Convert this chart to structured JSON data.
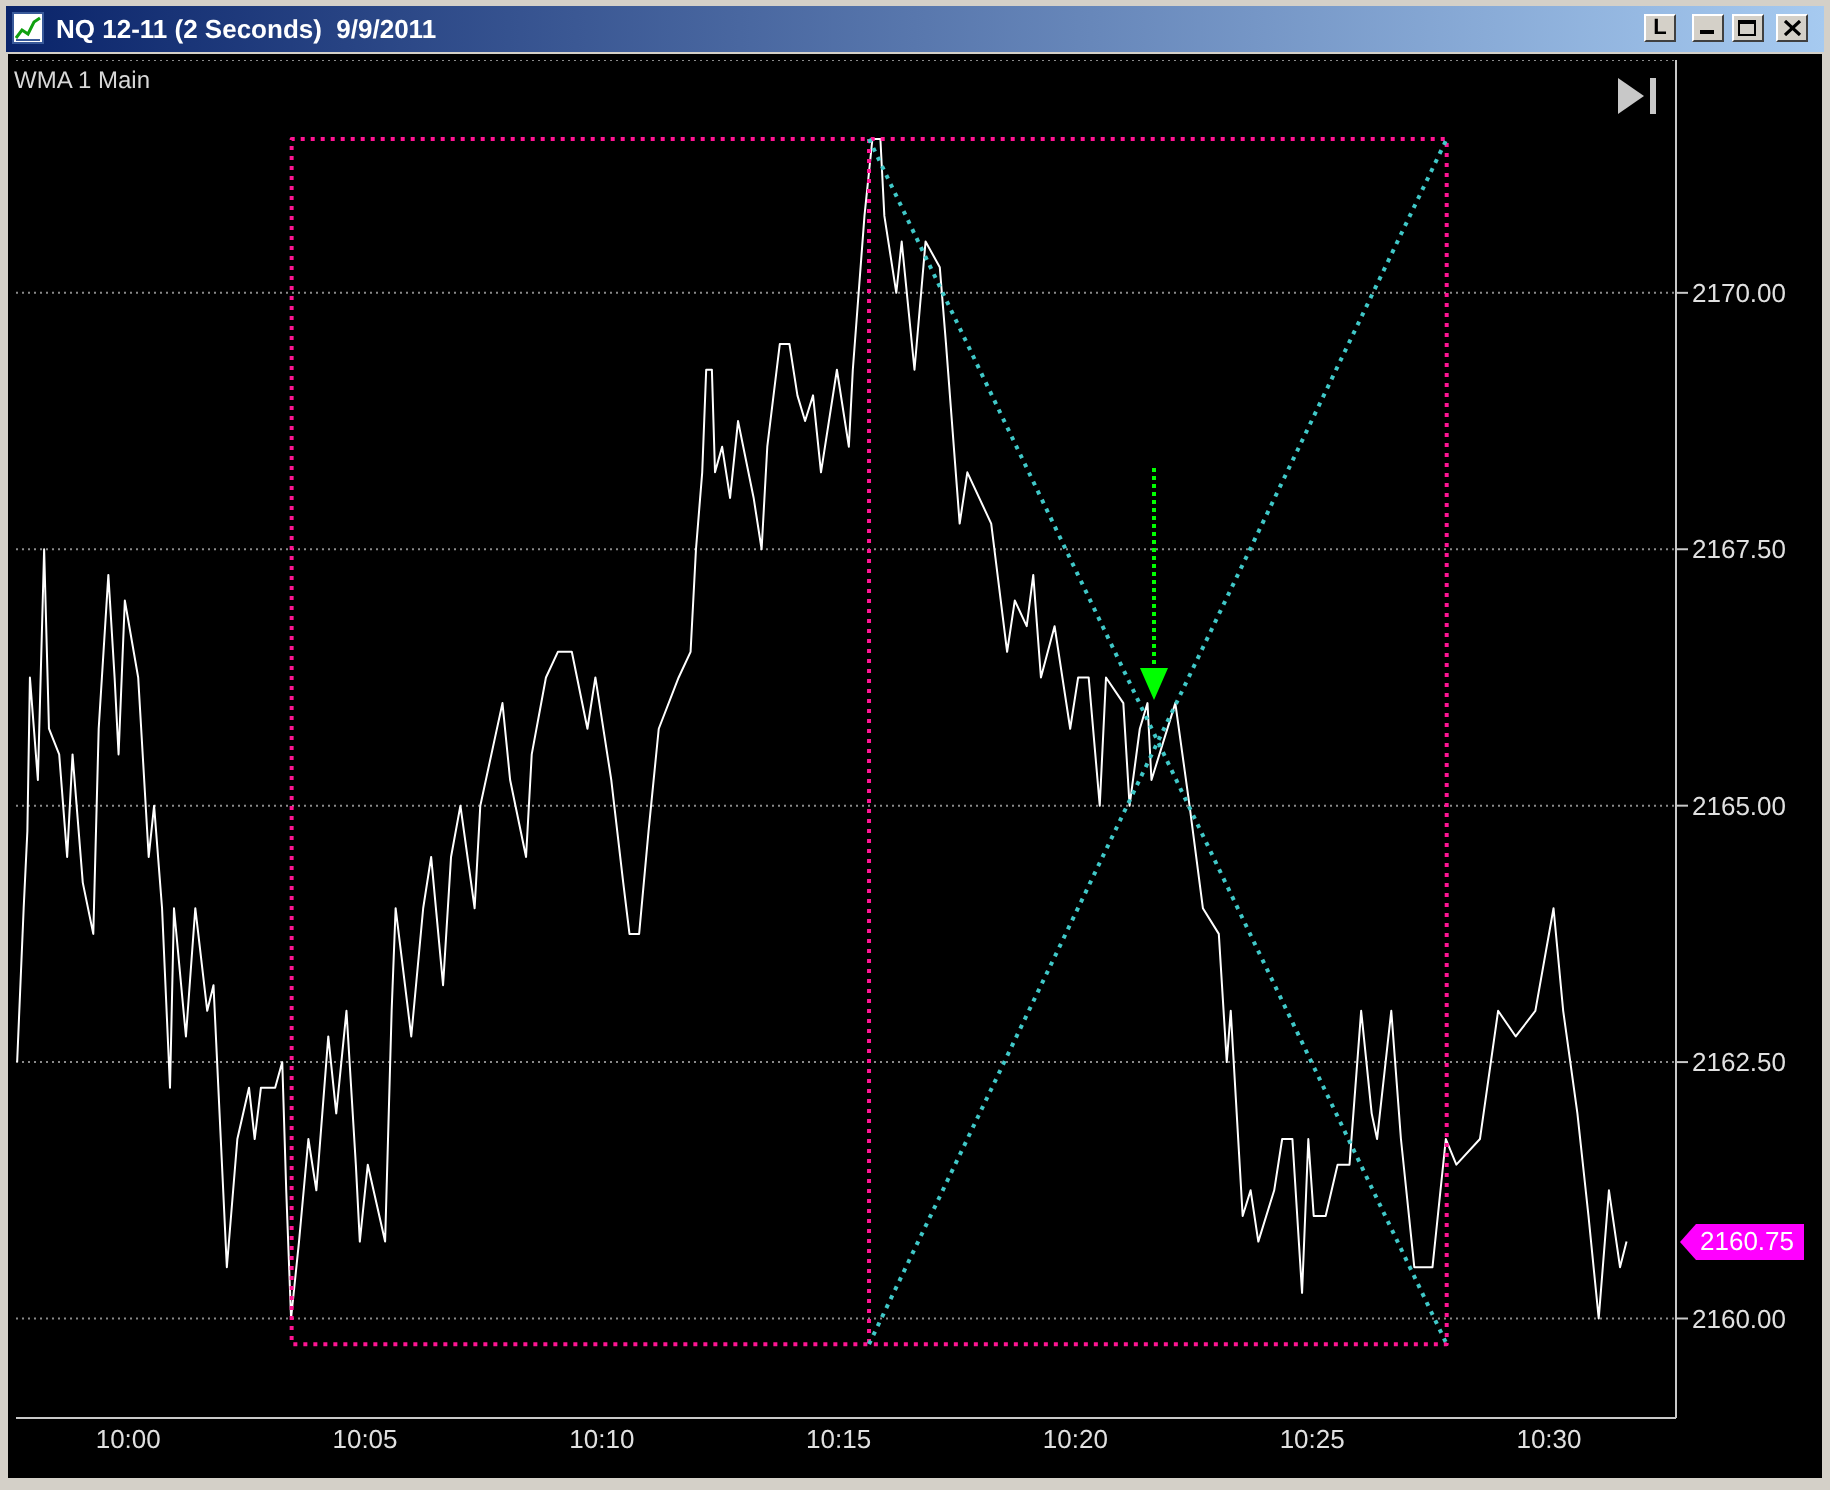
{
  "chart_data": {
    "type": "line",
    "title": "NQ 12-11 (2 Seconds)  9/9/2011",
    "subtitle": "WMA 1 Main",
    "x": [
      9.9609,
      9.9632,
      9.9645,
      9.9654,
      9.9682,
      9.9704,
      9.9721,
      9.9757,
      9.9785,
      9.9804,
      9.984,
      9.9877,
      9.9896,
      9.993,
      9.9952,
      9.9966,
      9.9988,
      10.0035,
      10.0072,
      10.0091,
      10.0119,
      10.0147,
      10.0161,
      10.0203,
      10.0236,
      10.0278,
      10.03,
      10.0347,
      10.0384,
      10.0425,
      10.0445,
      10.0467,
      10.0517,
      10.0542,
      10.0556,
      10.0573,
      10.0601,
      10.0634,
      10.0662,
      10.0704,
      10.0732,
      10.0768,
      10.0801,
      10.0815,
      10.0843,
      10.0904,
      10.0927,
      10.0941,
      10.0996,
      10.1038,
      10.1066,
      10.1108,
      10.1136,
      10.1169,
      10.1219,
      10.1239,
      10.1317,
      10.1344,
      10.14,
      10.142,
      10.147,
      10.1512,
      10.1561,
      10.1616,
      10.1644,
      10.17,
      10.1742,
      10.1764,
      10.1798,
      10.1831,
      10.1867,
      10.1937,
      10.1979,
      10.1998,
      10.202,
      10.2034,
      10.2054,
      10.2065,
      10.209,
      10.2118,
      10.2146,
      10.2201,
      10.2229,
      10.2249,
      10.2293,
      10.2327,
      10.2355,
      10.2382,
      10.241,
      10.2438,
      10.2494,
      10.2536,
      10.255,
      10.2591,
      10.2619,
      10.2647,
      10.2661,
      10.2703,
      10.2722,
      10.2767,
      10.2806,
      10.2856,
      10.2878,
      10.2926,
      10.2953,
      10.3037,
      10.3093,
      10.312,
      10.3162,
      10.3185,
      10.3212,
      10.326,
      10.3315,
      10.3343,
      10.338,
      10.3419,
      10.3441,
      10.3502,
      10.3524,
      10.356,
      10.3587,
      10.3601,
      10.3685,
      10.3735,
      10.3782,
      10.3838,
      10.3866,
      10.388,
      10.3922,
      10.395,
      10.3977,
      10.4033,
      10.4061,
      10.4097,
      10.4131,
      10.4153,
      10.4172,
      10.4214,
      10.4256,
      10.4298,
      10.4339,
      10.4376,
      10.4395,
      10.4445,
      10.4479,
      10.4526,
      10.459,
      10.4637,
      10.4674,
      10.4757,
      10.4821,
      10.4883,
      10.4952,
      10.5016,
      10.505,
      10.51,
      10.5139,
      10.5175,
      10.5211,
      10.525,
      10.5273
    ],
    "series": [
      {
        "color": "#ffffff",
        "values": [
          2162.5,
          2164.0,
          2164.75,
          2166.25,
          2165.25,
          2167.5,
          2165.75,
          2165.5,
          2164.5,
          2165.5,
          2164.25,
          2163.75,
          2165.75,
          2167.25,
          2166.25,
          2165.5,
          2167.0,
          2166.25,
          2164.5,
          2165.0,
          2164.0,
          2162.25,
          2164.0,
          2162.75,
          2164.0,
          2163.0,
          2163.25,
          2160.5,
          2161.75,
          2162.25,
          2161.75,
          2162.25,
          2162.25,
          2162.5,
          2161.25,
          2160.0,
          2160.75,
          2161.75,
          2161.25,
          2162.75,
          2162.0,
          2163.0,
          2161.5,
          2160.75,
          2161.5,
          2160.75,
          2163.0,
          2164.0,
          2162.75,
          2164.0,
          2164.5,
          2163.25,
          2164.5,
          2165.0,
          2164.0,
          2165.0,
          2166.0,
          2165.25,
          2164.5,
          2165.5,
          2166.25,
          2166.5,
          2166.5,
          2165.75,
          2166.25,
          2165.25,
          2164.25,
          2163.75,
          2163.75,
          2164.75,
          2165.75,
          2166.25,
          2166.5,
          2167.5,
          2168.25,
          2169.25,
          2169.25,
          2168.25,
          2168.5,
          2168.0,
          2168.75,
          2168.0,
          2167.5,
          2168.5,
          2169.5,
          2169.5,
          2169.0,
          2168.75,
          2169.0,
          2168.25,
          2169.25,
          2168.5,
          2169.25,
          2170.75,
          2171.5,
          2171.5,
          2170.75,
          2170.0,
          2170.5,
          2169.25,
          2170.5,
          2170.25,
          2169.5,
          2167.75,
          2168.25,
          2167.75,
          2166.5,
          2167.0,
          2166.75,
          2167.25,
          2166.25,
          2166.75,
          2165.75,
          2166.25,
          2166.25,
          2165.0,
          2166.25,
          2166.0,
          2165.0,
          2165.75,
          2166.0,
          2165.25,
          2166.0,
          2165.0,
          2164.0,
          2163.75,
          2162.5,
          2163.0,
          2161.0,
          2161.25,
          2160.75,
          2161.25,
          2161.75,
          2161.75,
          2160.25,
          2161.75,
          2161.0,
          2161.0,
          2161.5,
          2161.5,
          2163.0,
          2162.0,
          2161.75,
          2163.0,
          2161.75,
          2160.5,
          2160.5,
          2161.75,
          2161.5,
          2161.75,
          2163.0,
          2162.75,
          2163.0,
          2164.0,
          2163.0,
          2162.0,
          2161.0,
          2160.0,
          2161.25,
          2160.5,
          2160.75
        ]
      },
      {
        "color": "#ff1493",
        "line_style": "dotted",
        "x": [
          10.2607,
          10.2607,
          10.464,
          10.464,
          10.0575,
          10.0575,
          10.2607
        ],
        "values": [
          2171.5,
          2159.75,
          2159.75,
          2171.5,
          2171.5,
          2159.75,
          2159.75
        ]
      },
      {
        "color": "#40c8c8",
        "line_style": "dotted",
        "x": [
          10.2607,
          10.464
        ],
        "values": [
          2171.5,
          2159.75
        ]
      },
      {
        "color": "#40c8c8",
        "line_style": "dotted",
        "x": [
          10.2607,
          10.464
        ],
        "values": [
          2159.75,
          2171.5
        ]
      }
    ],
    "xlim": [
      9.9605,
      10.5447
    ],
    "xticks": [
      {
        "value": 10,
        "label": "10:00"
      },
      {
        "value": 10.08333,
        "label": "10:05"
      },
      {
        "value": 10.16667,
        "label": "10:10"
      },
      {
        "value": 10.25,
        "label": "10:15"
      },
      {
        "value": 10.33333,
        "label": "10:20"
      },
      {
        "value": 10.41667,
        "label": "10:25"
      },
      {
        "value": 10.5,
        "label": "10:30"
      }
    ],
    "ylim": [
      2159.03,
      2172.27
    ],
    "yticks": [
      {
        "value": 2160,
        "label": "2160.00"
      },
      {
        "value": 2162.5,
        "label": "2162.50"
      },
      {
        "value": 2165,
        "label": "2165.00"
      },
      {
        "value": 2167.5,
        "label": "2167.50"
      },
      {
        "value": 2170,
        "label": "2170.00"
      }
    ],
    "grid": "y",
    "line_style": "solid",
    "annotations": [
      "L",
      {
        "text": "2160.75",
        "x": 10.5273,
        "y": 2160.75
      }
    ]
  }
}
